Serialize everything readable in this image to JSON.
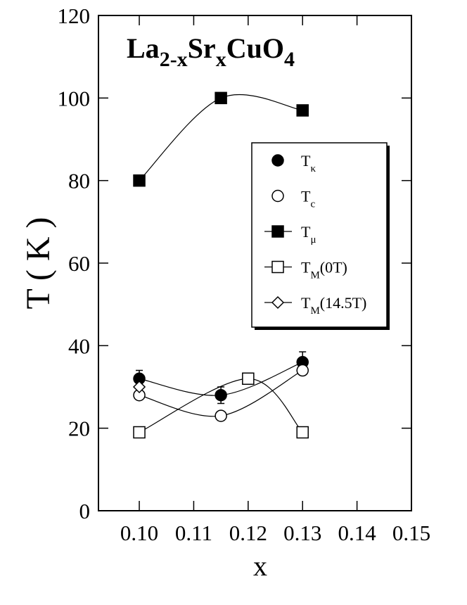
{
  "chart_data": {
    "type": "scatter",
    "title_parts": [
      {
        "text": "La"
      },
      {
        "text": "2-x",
        "sub": true
      },
      {
        "text": "Sr"
      },
      {
        "text": "x",
        "sub": true
      },
      {
        "text": "CuO"
      },
      {
        "text": "4",
        "sub": true
      }
    ],
    "x_label": "x",
    "y_label": "T ( K )",
    "xlim": [
      0.0925,
      0.15
    ],
    "ylim": [
      0,
      120
    ],
    "xticks": [
      {
        "value": 0.1,
        "label": "0.10"
      },
      0.11,
      0.12,
      0.13,
      0.14,
      0.15
    ],
    "yticks": [
      0,
      20,
      40,
      60,
      80,
      100,
      120
    ],
    "series": [
      {
        "name": "T",
        "subscript": "κ",
        "marker": "circle",
        "filled": true,
        "fit": true,
        "x": [
          0.1,
          0.115,
          0.13
        ],
        "values": [
          32,
          28,
          36
        ],
        "errors": [
          2,
          2,
          2.5
        ]
      },
      {
        "name": "T",
        "subscript": "c",
        "marker": "circle",
        "filled": false,
        "fit": true,
        "x": [
          0.1,
          0.115,
          0.13
        ],
        "values": [
          28,
          23,
          34
        ]
      },
      {
        "name": "T",
        "subscript": "μ",
        "marker": "square",
        "filled": true,
        "fit": true,
        "x": [
          0.1,
          0.115,
          0.13
        ],
        "values": [
          80,
          100,
          97
        ]
      },
      {
        "name": "T",
        "subscript": "M",
        "suffix": "(0T)",
        "marker": "square",
        "filled": false,
        "fit": true,
        "x": [
          0.1,
          0.12,
          0.13
        ],
        "values": [
          19,
          32,
          19
        ]
      },
      {
        "name": "T",
        "subscript": "M",
        "suffix": "(14.5T)",
        "marker": "diamond",
        "filled": false,
        "fit": false,
        "x": [
          0.1
        ],
        "values": [
          30
        ]
      }
    ]
  }
}
